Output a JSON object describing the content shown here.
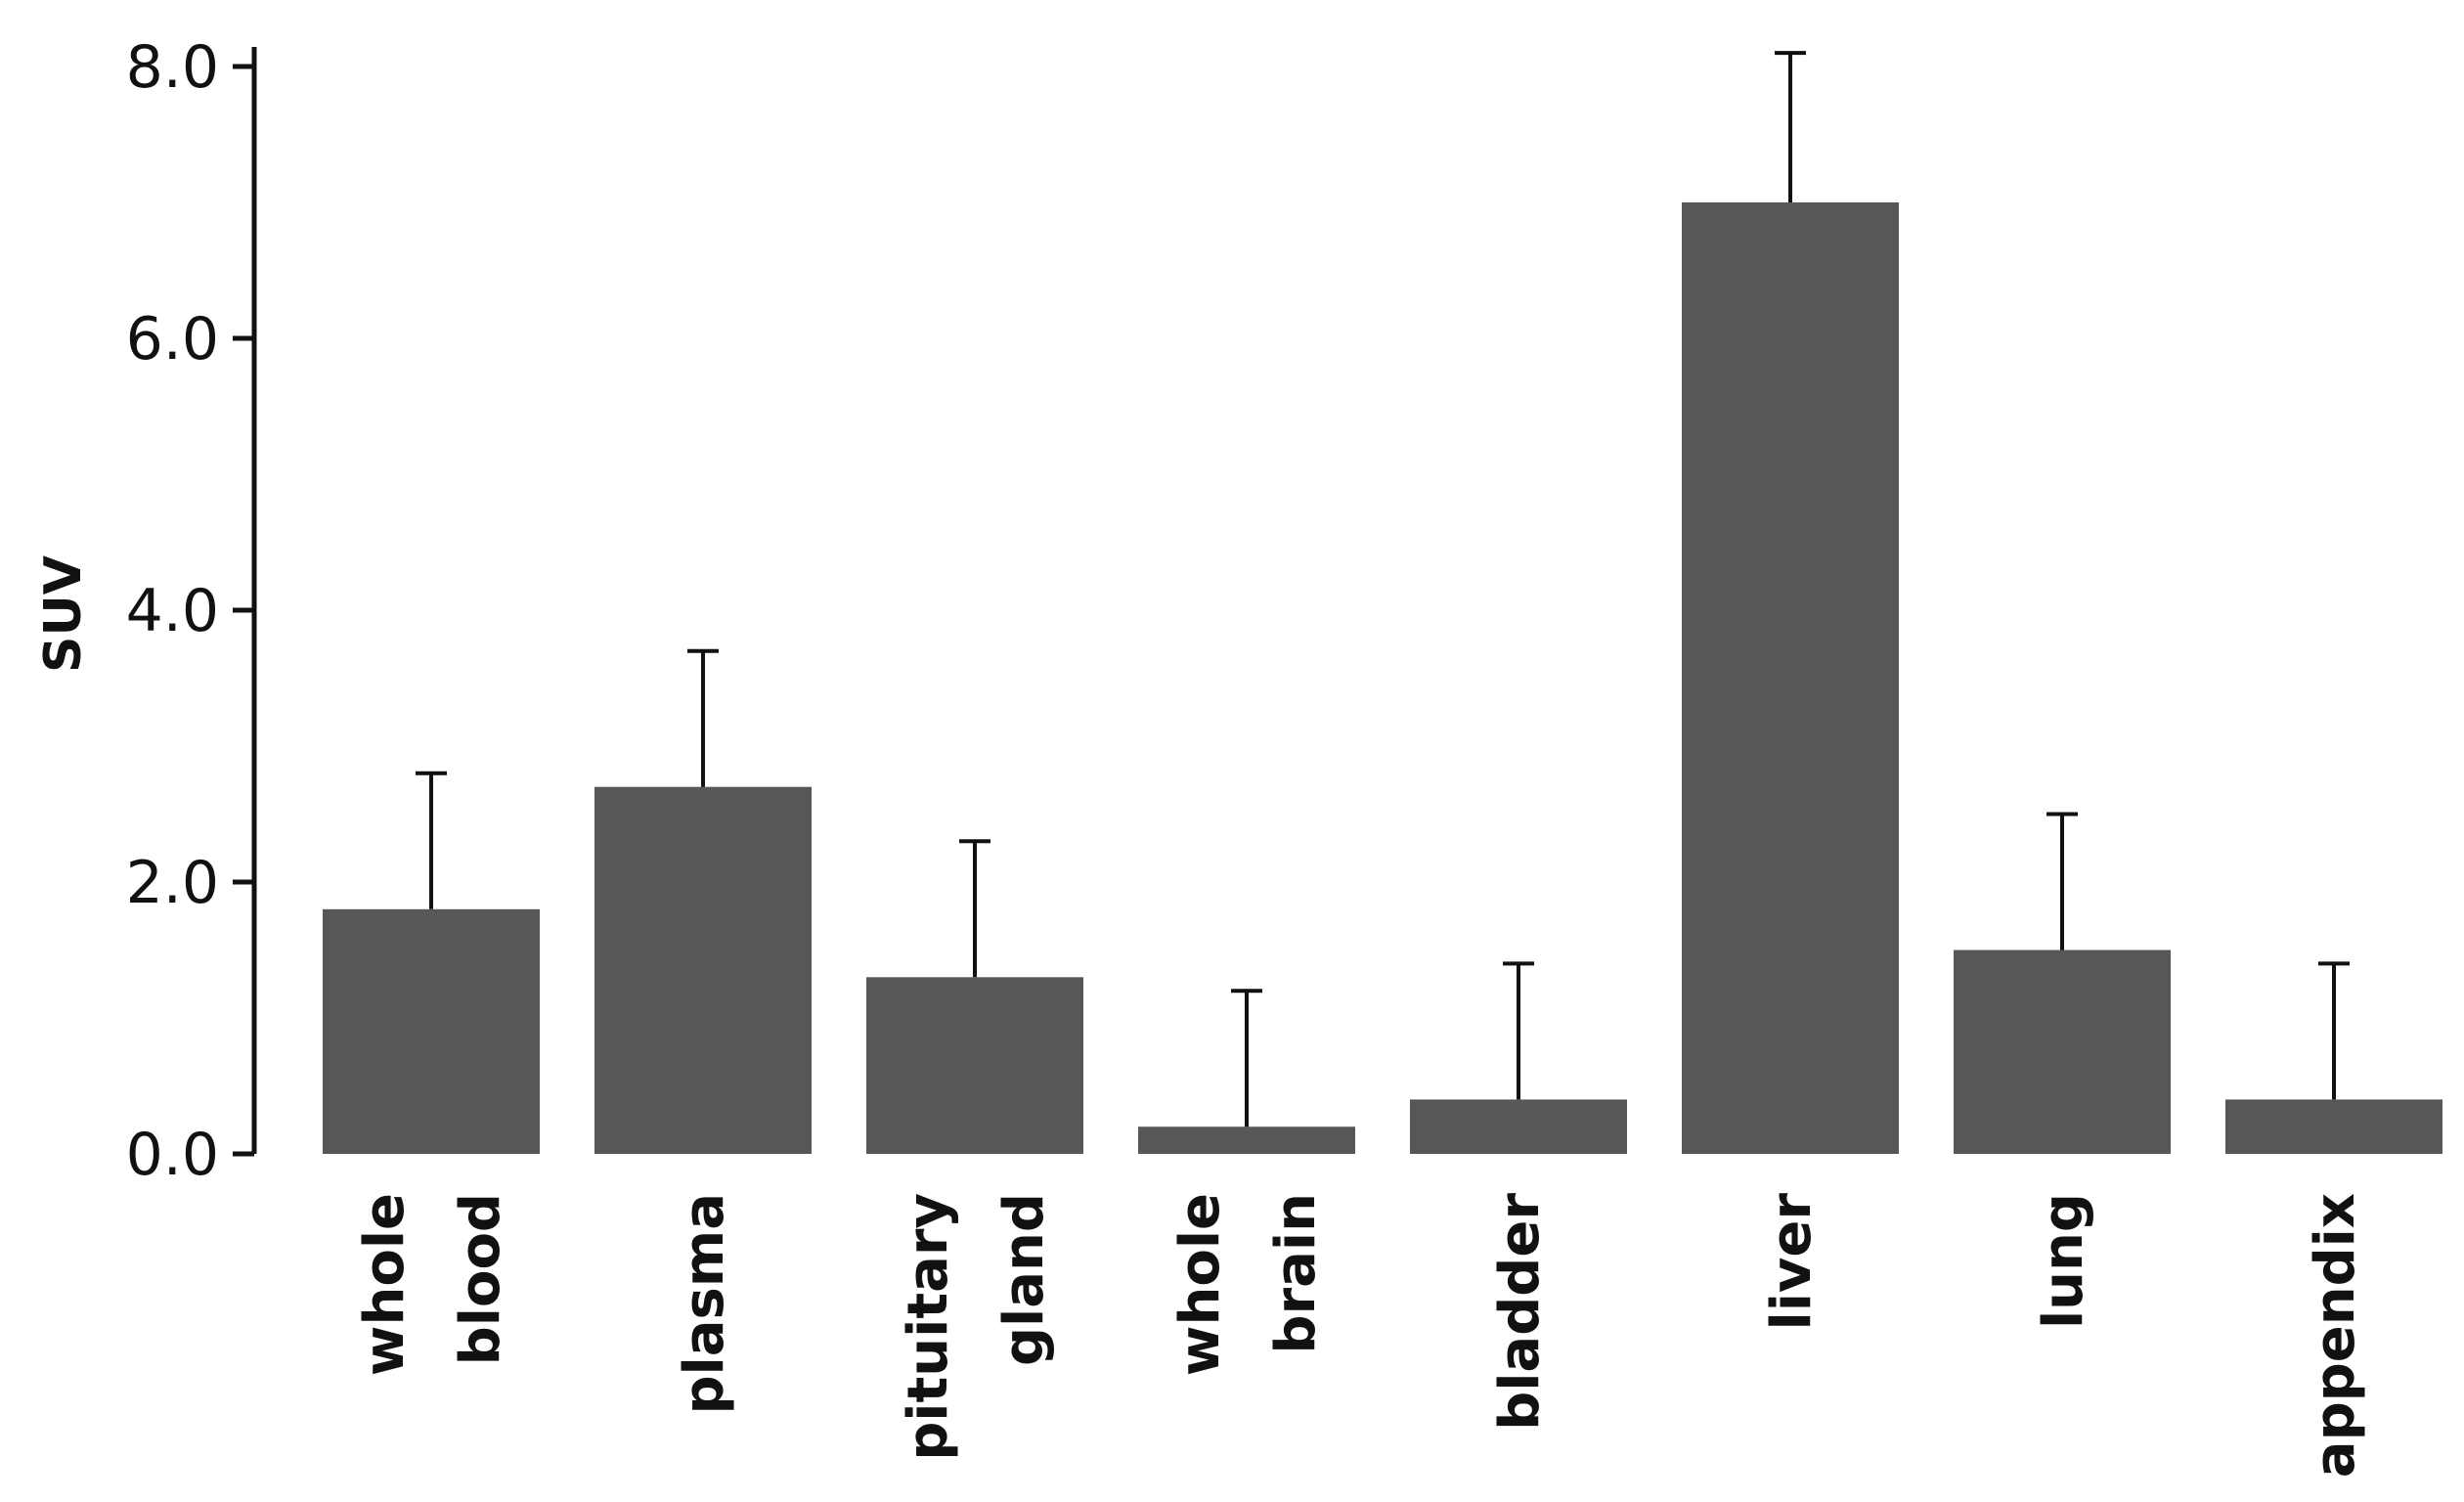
{
  "chart_data": {
    "type": "bar",
    "categories": [
      [
        "whole",
        "blood"
      ],
      [
        "plasma"
      ],
      [
        "pituitary",
        "gland"
      ],
      [
        "whole",
        "brain"
      ],
      [
        "bladder"
      ],
      [
        "liver"
      ],
      [
        "lung"
      ],
      [
        "appendix"
      ]
    ],
    "values": [
      1.8,
      2.7,
      1.3,
      0.2,
      0.4,
      7.0,
      1.5,
      0.4
    ],
    "error_upper": [
      2.8,
      3.7,
      2.3,
      1.2,
      1.4,
      8.1,
      2.5,
      1.4
    ],
    "ylabel": "SUV",
    "xlabel": "",
    "ylim": [
      0,
      8
    ],
    "yticks": [
      "0.0",
      "2.0",
      "4.0",
      "6.0",
      "8.0"
    ],
    "ytick_values": [
      0,
      2,
      4,
      6,
      8
    ],
    "grid": false,
    "bar_color": "#575757"
  }
}
